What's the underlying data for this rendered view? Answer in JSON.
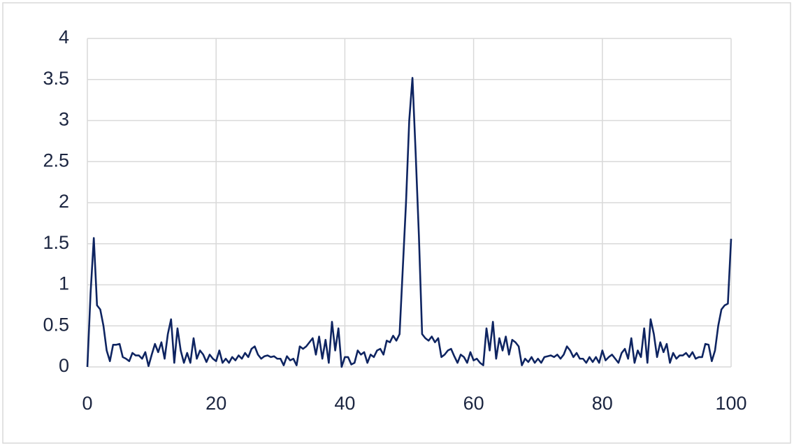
{
  "chart_data": {
    "type": "line",
    "x": [
      0,
      0.5,
      1,
      1.5,
      2,
      2.5,
      3,
      3.5,
      4,
      4.5,
      5,
      5.5,
      6,
      6.5,
      7,
      7.5,
      8,
      8.5,
      9,
      9.5,
      10,
      10.5,
      11,
      11.5,
      12,
      12.5,
      13,
      13.5,
      14,
      14.5,
      15,
      15.5,
      16,
      16.5,
      17,
      17.5,
      18,
      18.5,
      19,
      19.5,
      20,
      20.5,
      21,
      21.5,
      22,
      22.5,
      23,
      23.5,
      24,
      24.5,
      25,
      25.5,
      26,
      26.5,
      27,
      27.5,
      28,
      28.5,
      29,
      29.5,
      30,
      30.5,
      31,
      31.5,
      32,
      32.5,
      33,
      33.5,
      34,
      34.5,
      35,
      35.5,
      36,
      36.5,
      37,
      37.5,
      38,
      38.5,
      39,
      39.5,
      40,
      40.5,
      41,
      41.5,
      42,
      42.5,
      43,
      43.5,
      44,
      44.5,
      45,
      45.5,
      46,
      46.5,
      47,
      47.5,
      48,
      48.5,
      49,
      49.5,
      50,
      50.5,
      51,
      51.5,
      52,
      52.5,
      53,
      53.5,
      54,
      54.5,
      55,
      55.5,
      56,
      56.5,
      57,
      57.5,
      58,
      58.5,
      59,
      59.5,
      60,
      60.5,
      61,
      61.5,
      62,
      62.5,
      63,
      63.5,
      64,
      64.5,
      65,
      65.5,
      66,
      66.5,
      67,
      67.5,
      68,
      68.5,
      69,
      69.5,
      70,
      70.5,
      71,
      71.5,
      72,
      72.5,
      73,
      73.5,
      74,
      74.5,
      75,
      75.5,
      76,
      76.5,
      77,
      77.5,
      78,
      78.5,
      79,
      79.5,
      80,
      80.5,
      81,
      81.5,
      82,
      82.5,
      83,
      83.5,
      84,
      84.5,
      85,
      85.5,
      86,
      86.5,
      87,
      87.5,
      88,
      88.5,
      89,
      89.5,
      90,
      90.5,
      91,
      91.5,
      92,
      92.5,
      93,
      93.5,
      94,
      94.5,
      95,
      95.5,
      96,
      96.5,
      97,
      97.5,
      98,
      98.5,
      99,
      99.5,
      100
    ],
    "values": [
      0,
      0.9,
      1.57,
      0.75,
      0.7,
      0.5,
      0.2,
      0.07,
      0.27,
      0.27,
      0.28,
      0.12,
      0.1,
      0.07,
      0.17,
      0.14,
      0.14,
      0.1,
      0.18,
      0.01,
      0.15,
      0.28,
      0.18,
      0.3,
      0.1,
      0.4,
      0.58,
      0.05,
      0.47,
      0.2,
      0.05,
      0.17,
      0.05,
      0.35,
      0.1,
      0.2,
      0.15,
      0.06,
      0.15,
      0.1,
      0.07,
      0.2,
      0.05,
      0.1,
      0.05,
      0.12,
      0.08,
      0.14,
      0.1,
      0.17,
      0.12,
      0.22,
      0.25,
      0.15,
      0.1,
      0.13,
      0.14,
      0.12,
      0.13,
      0.1,
      0.1,
      0.02,
      0.13,
      0.08,
      0.1,
      0.02,
      0.25,
      0.22,
      0.25,
      0.3,
      0.35,
      0.15,
      0.37,
      0.1,
      0.33,
      0.05,
      0.55,
      0.2,
      0.47,
      0,
      0.12,
      0.12,
      0.03,
      0.05,
      0.2,
      0.15,
      0.18,
      0.05,
      0.15,
      0.12,
      0.2,
      0.22,
      0.15,
      0.32,
      0.3,
      0.38,
      0.32,
      0.4,
      1.2,
      2,
      3,
      3.52,
      2.6,
      1.6,
      0.4,
      0.35,
      0.32,
      0.37,
      0.3,
      0.35,
      0.12,
      0.15,
      0.2,
      0.22,
      0.13,
      0.05,
      0.15,
      0.12,
      0.05,
      0.18,
      0.08,
      0.1,
      0.05,
      0.02,
      0.47,
      0.2,
      0.55,
      0.1,
      0.35,
      0.2,
      0.37,
      0.15,
      0.33,
      0.3,
      0.25,
      0.02,
      0.1,
      0.06,
      0.12,
      0.05,
      0.1,
      0.05,
      0.12,
      0.13,
      0.14,
      0.12,
      0.15,
      0.1,
      0.15,
      0.25,
      0.2,
      0.12,
      0.17,
      0.1,
      0.1,
      0.05,
      0.12,
      0.06,
      0.12,
      0.05,
      0.2,
      0.08,
      0.12,
      0.15,
      0.1,
      0.05,
      0.17,
      0.22,
      0.1,
      0.35,
      0.05,
      0.2,
      0.12,
      0.47,
      0.05,
      0.58,
      0.4,
      0.12,
      0.3,
      0.18,
      0.28,
      0.05,
      0.17,
      0.1,
      0.14,
      0.14,
      0.17,
      0.12,
      0.18,
      0.1,
      0.12,
      0.12,
      0.28,
      0.27,
      0.07,
      0.2,
      0.5,
      0.7,
      0.75,
      0.77,
      1.56
    ],
    "color": "#0e2461",
    "xlim": [
      0,
      100
    ],
    "xticks": [
      0,
      20,
      40,
      60,
      80,
      100
    ],
    "ylim": [
      0,
      4
    ],
    "yticks": [
      0,
      0.5,
      1,
      1.5,
      2,
      2.5,
      3,
      3.5,
      4
    ],
    "grid": true
  }
}
